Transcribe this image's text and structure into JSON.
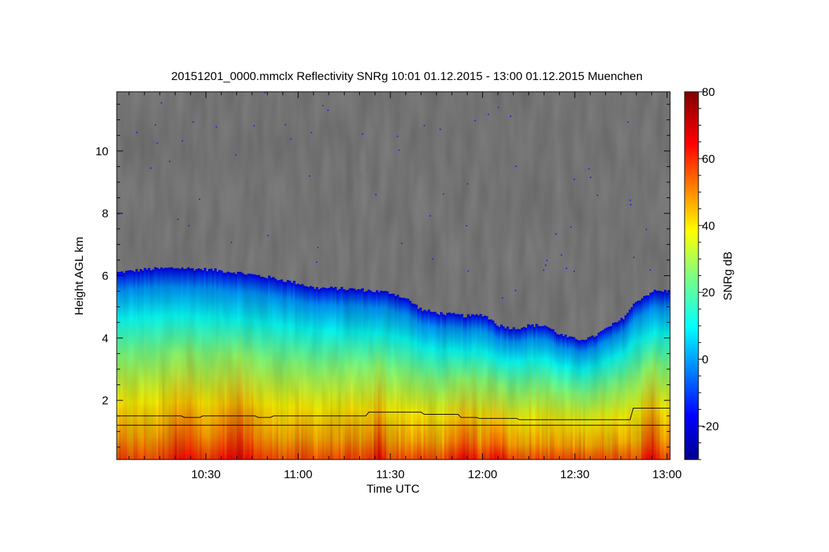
{
  "chart_data": {
    "type": "heatmap",
    "title": "20151201_0000.mmclx Reflectivity SNRg   10:01 01.12.2015 - 13:00 01.12.2015 Muenchen",
    "xlabel": "Time UTC",
    "ylabel": "Height AGL km",
    "colorbar_label": "SNRg dB",
    "x_ticks": [
      "10:30",
      "11:00",
      "11:30",
      "12:00",
      "12:30",
      "13:00"
    ],
    "x_tick_minutes": [
      630,
      660,
      690,
      720,
      750,
      780
    ],
    "xlim_minutes": [
      601,
      781
    ],
    "y_ticks": [
      2,
      4,
      6,
      8,
      10
    ],
    "ylim": [
      0.1,
      11.9
    ],
    "colorbar_ticks": [
      80,
      60,
      40,
      20,
      0,
      -20
    ],
    "colorbar_range": [
      -30,
      80
    ],
    "no_signal_color": "#808080",
    "colormap": "jet",
    "echo_top_km": {
      "minutes": [
        601,
        610,
        620,
        630,
        640,
        650,
        660,
        665,
        670,
        680,
        690,
        695,
        700,
        705,
        710,
        715,
        720,
        725,
        730,
        735,
        740,
        745,
        750,
        755,
        760,
        765,
        770,
        775,
        781
      ],
      "values": [
        6.1,
        6.2,
        6.25,
        6.2,
        6.1,
        5.95,
        5.75,
        5.6,
        5.6,
        5.55,
        5.45,
        5.25,
        4.9,
        4.8,
        4.75,
        4.7,
        4.75,
        4.4,
        4.3,
        4.4,
        4.4,
        4.1,
        3.95,
        4.0,
        4.3,
        4.6,
        5.2,
        5.5,
        5.5
      ]
    },
    "lines_km": [
      {
        "minutes": [
          601,
          622,
          623,
          628,
          629,
          646,
          647,
          651,
          652,
          656,
          657,
          682,
          683,
          700,
          701,
          712,
          713,
          718,
          719,
          731,
          732,
          768,
          769,
          781
        ],
        "values": [
          1.5,
          1.5,
          1.45,
          1.45,
          1.5,
          1.5,
          1.45,
          1.45,
          1.5,
          1.5,
          1.5,
          1.5,
          1.62,
          1.62,
          1.55,
          1.55,
          1.45,
          1.45,
          1.42,
          1.42,
          1.38,
          1.38,
          1.75,
          1.75
        ]
      },
      {
        "minutes": [
          601,
          781
        ],
        "values": [
          1.2,
          1.2
        ]
      }
    ]
  }
}
